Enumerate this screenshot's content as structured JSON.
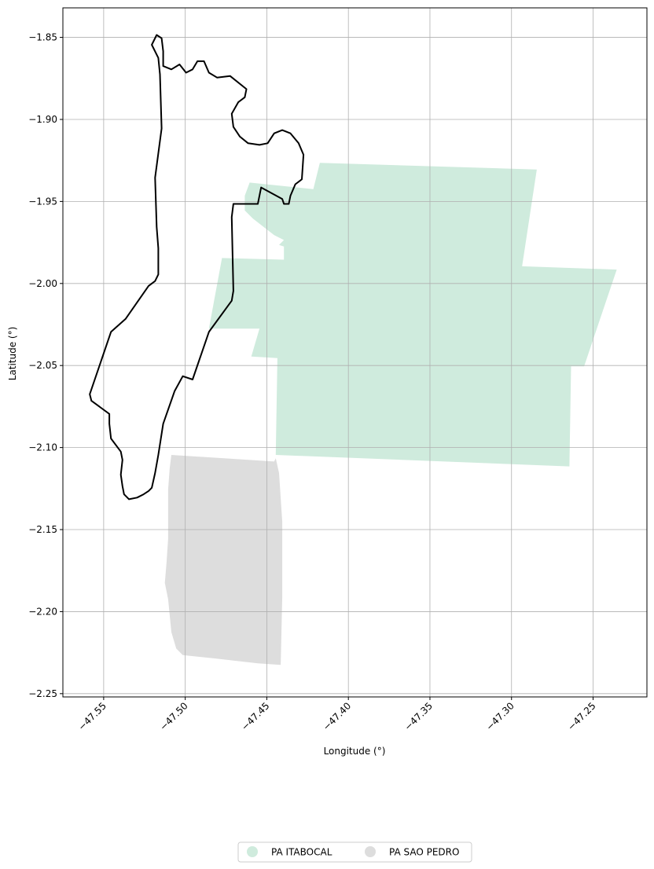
{
  "chart_data": {
    "type": "map",
    "xlabel": "Longitude (°)",
    "ylabel": "Latitude (°)",
    "xlim": [
      -47.575,
      -47.217
    ],
    "ylim": [
      -2.252,
      -1.832
    ],
    "grid": true,
    "legend_placement": "bottom-center",
    "x_ticks": [
      {
        "value": -47.55,
        "label": "−47.55"
      },
      {
        "value": -47.5,
        "label": "−47.50"
      },
      {
        "value": -47.45,
        "label": "−47.45"
      },
      {
        "value": -47.4,
        "label": "−47.40"
      },
      {
        "value": -47.35,
        "label": "−47.35"
      },
      {
        "value": -47.3,
        "label": "−47.30"
      },
      {
        "value": -47.25,
        "label": "−47.25"
      }
    ],
    "y_ticks": [
      {
        "value": -1.85,
        "label": "−1.85"
      },
      {
        "value": -1.9,
        "label": "−1.90"
      },
      {
        "value": -1.95,
        "label": "−1.95"
      },
      {
        "value": -2.0,
        "label": "−2.00"
      },
      {
        "value": -2.05,
        "label": "−2.05"
      },
      {
        "value": -2.1,
        "label": "−2.10"
      },
      {
        "value": -2.15,
        "label": "−2.15"
      },
      {
        "value": -2.2,
        "label": "−2.20"
      },
      {
        "value": -2.25,
        "label": "−2.25"
      }
    ],
    "regions": [
      {
        "name": "PA ITABOCAL",
        "color": "#cfebdd",
        "coords": [
          [
            -47.4175,
            -1.9265
          ],
          [
            -47.2845,
            -1.9305
          ],
          [
            -47.2935,
            -1.9895
          ],
          [
            -47.2355,
            -1.9915
          ],
          [
            -47.2555,
            -2.0505
          ],
          [
            -47.2635,
            -2.0505
          ],
          [
            -47.2645,
            -2.1115
          ],
          [
            -47.4445,
            -2.1045
          ],
          [
            -47.4435,
            -2.0455
          ],
          [
            -47.4595,
            -2.0445
          ],
          [
            -47.4545,
            -2.0275
          ],
          [
            -47.4855,
            -2.0275
          ],
          [
            -47.4775,
            -1.9845
          ],
          [
            -47.4395,
            -1.9855
          ],
          [
            -47.4395,
            -1.9775
          ],
          [
            -47.4425,
            -1.9765
          ],
          [
            -47.4395,
            -1.9735
          ],
          [
            -47.4455,
            -1.9705
          ],
          [
            -47.4585,
            -1.9605
          ],
          [
            -47.4635,
            -1.9555
          ],
          [
            -47.4635,
            -1.9465
          ],
          [
            -47.4605,
            -1.9385
          ],
          [
            -47.4215,
            -1.9425
          ]
        ]
      },
      {
        "name": "PA SAO PEDRO",
        "color": "#dddddd",
        "coords": [
          [
            -47.5085,
            -2.1045
          ],
          [
            -47.4455,
            -2.1085
          ],
          [
            -47.4445,
            -2.1065
          ],
          [
            -47.4425,
            -2.1155
          ],
          [
            -47.4405,
            -2.1455
          ],
          [
            -47.4405,
            -2.1905
          ],
          [
            -47.4415,
            -2.2325
          ],
          [
            -47.4555,
            -2.2315
          ],
          [
            -47.4825,
            -2.2285
          ],
          [
            -47.5015,
            -2.2265
          ],
          [
            -47.5055,
            -2.2225
          ],
          [
            -47.5085,
            -2.2125
          ],
          [
            -47.5105,
            -2.1925
          ],
          [
            -47.5125,
            -2.1825
          ],
          [
            -47.5115,
            -2.1705
          ],
          [
            -47.5105,
            -2.1555
          ],
          [
            -47.5105,
            -2.1255
          ],
          [
            -47.5095,
            -2.1125
          ]
        ]
      }
    ],
    "outlines": [
      {
        "color": "#000000",
        "coords": [
          [
            -47.5175,
            -1.8485
          ],
          [
            -47.5145,
            -1.8505
          ],
          [
            -47.5135,
            -1.8585
          ],
          [
            -47.5135,
            -1.8675
          ],
          [
            -47.5085,
            -1.8695
          ],
          [
            -47.5035,
            -1.8665
          ],
          [
            -47.4995,
            -1.8715
          ],
          [
            -47.4955,
            -1.8695
          ],
          [
            -47.4925,
            -1.8645
          ],
          [
            -47.4885,
            -1.8645
          ],
          [
            -47.4855,
            -1.8715
          ],
          [
            -47.4805,
            -1.8745
          ],
          [
            -47.4725,
            -1.8735
          ],
          [
            -47.4625,
            -1.8815
          ],
          [
            -47.4635,
            -1.8865
          ],
          [
            -47.4675,
            -1.8895
          ],
          [
            -47.4715,
            -1.8965
          ],
          [
            -47.4705,
            -1.9045
          ],
          [
            -47.4665,
            -1.9105
          ],
          [
            -47.4615,
            -1.9145
          ],
          [
            -47.4545,
            -1.9155
          ],
          [
            -47.4495,
            -1.9145
          ],
          [
            -47.4455,
            -1.9085
          ],
          [
            -47.4405,
            -1.9065
          ],
          [
            -47.4355,
            -1.9085
          ],
          [
            -47.4305,
            -1.9145
          ],
          [
            -47.4275,
            -1.9215
          ],
          [
            -47.4285,
            -1.9365
          ],
          [
            -47.4325,
            -1.9395
          ],
          [
            -47.4355,
            -1.9465
          ],
          [
            -47.4365,
            -1.9515
          ],
          [
            -47.4395,
            -1.9515
          ],
          [
            -47.4405,
            -1.9485
          ],
          [
            -47.4535,
            -1.9415
          ],
          [
            -47.4555,
            -1.9515
          ],
          [
            -47.4705,
            -1.9515
          ],
          [
            -47.4715,
            -1.9595
          ],
          [
            -47.4705,
            -2.0045
          ],
          [
            -47.4715,
            -2.0105
          ],
          [
            -47.4855,
            -2.0295
          ],
          [
            -47.4955,
            -2.0585
          ],
          [
            -47.5015,
            -2.0565
          ],
          [
            -47.5065,
            -2.0655
          ],
          [
            -47.5135,
            -2.0855
          ],
          [
            -47.5165,
            -2.1045
          ],
          [
            -47.5185,
            -2.1155
          ],
          [
            -47.5205,
            -2.1245
          ],
          [
            -47.5225,
            -2.1265
          ],
          [
            -47.5255,
            -2.1285
          ],
          [
            -47.5295,
            -2.1305
          ],
          [
            -47.5345,
            -2.1315
          ],
          [
            -47.5375,
            -2.1285
          ],
          [
            -47.5385,
            -2.1235
          ],
          [
            -47.5395,
            -2.1165
          ],
          [
            -47.5385,
            -2.1075
          ],
          [
            -47.5395,
            -2.1025
          ],
          [
            -47.5455,
            -2.0945
          ],
          [
            -47.5465,
            -2.0855
          ],
          [
            -47.5465,
            -2.0795
          ],
          [
            -47.5575,
            -2.0715
          ],
          [
            -47.5585,
            -2.0675
          ],
          [
            -47.5455,
            -2.0295
          ],
          [
            -47.5365,
            -2.0215
          ],
          [
            -47.5225,
            -2.0015
          ],
          [
            -47.5185,
            -1.9985
          ],
          [
            -47.5165,
            -1.9945
          ],
          [
            -47.5165,
            -1.9785
          ],
          [
            -47.5175,
            -1.9655
          ],
          [
            -47.5185,
            -1.9355
          ],
          [
            -47.5145,
            -1.9055
          ],
          [
            -47.5155,
            -1.8725
          ],
          [
            -47.5165,
            -1.8625
          ],
          [
            -47.5205,
            -1.8545
          ]
        ]
      }
    ],
    "legend": [
      {
        "label": "PA ITABOCAL",
        "color": "#cfebdd"
      },
      {
        "label": "PA SAO PEDRO",
        "color": "#dddddd"
      }
    ]
  }
}
